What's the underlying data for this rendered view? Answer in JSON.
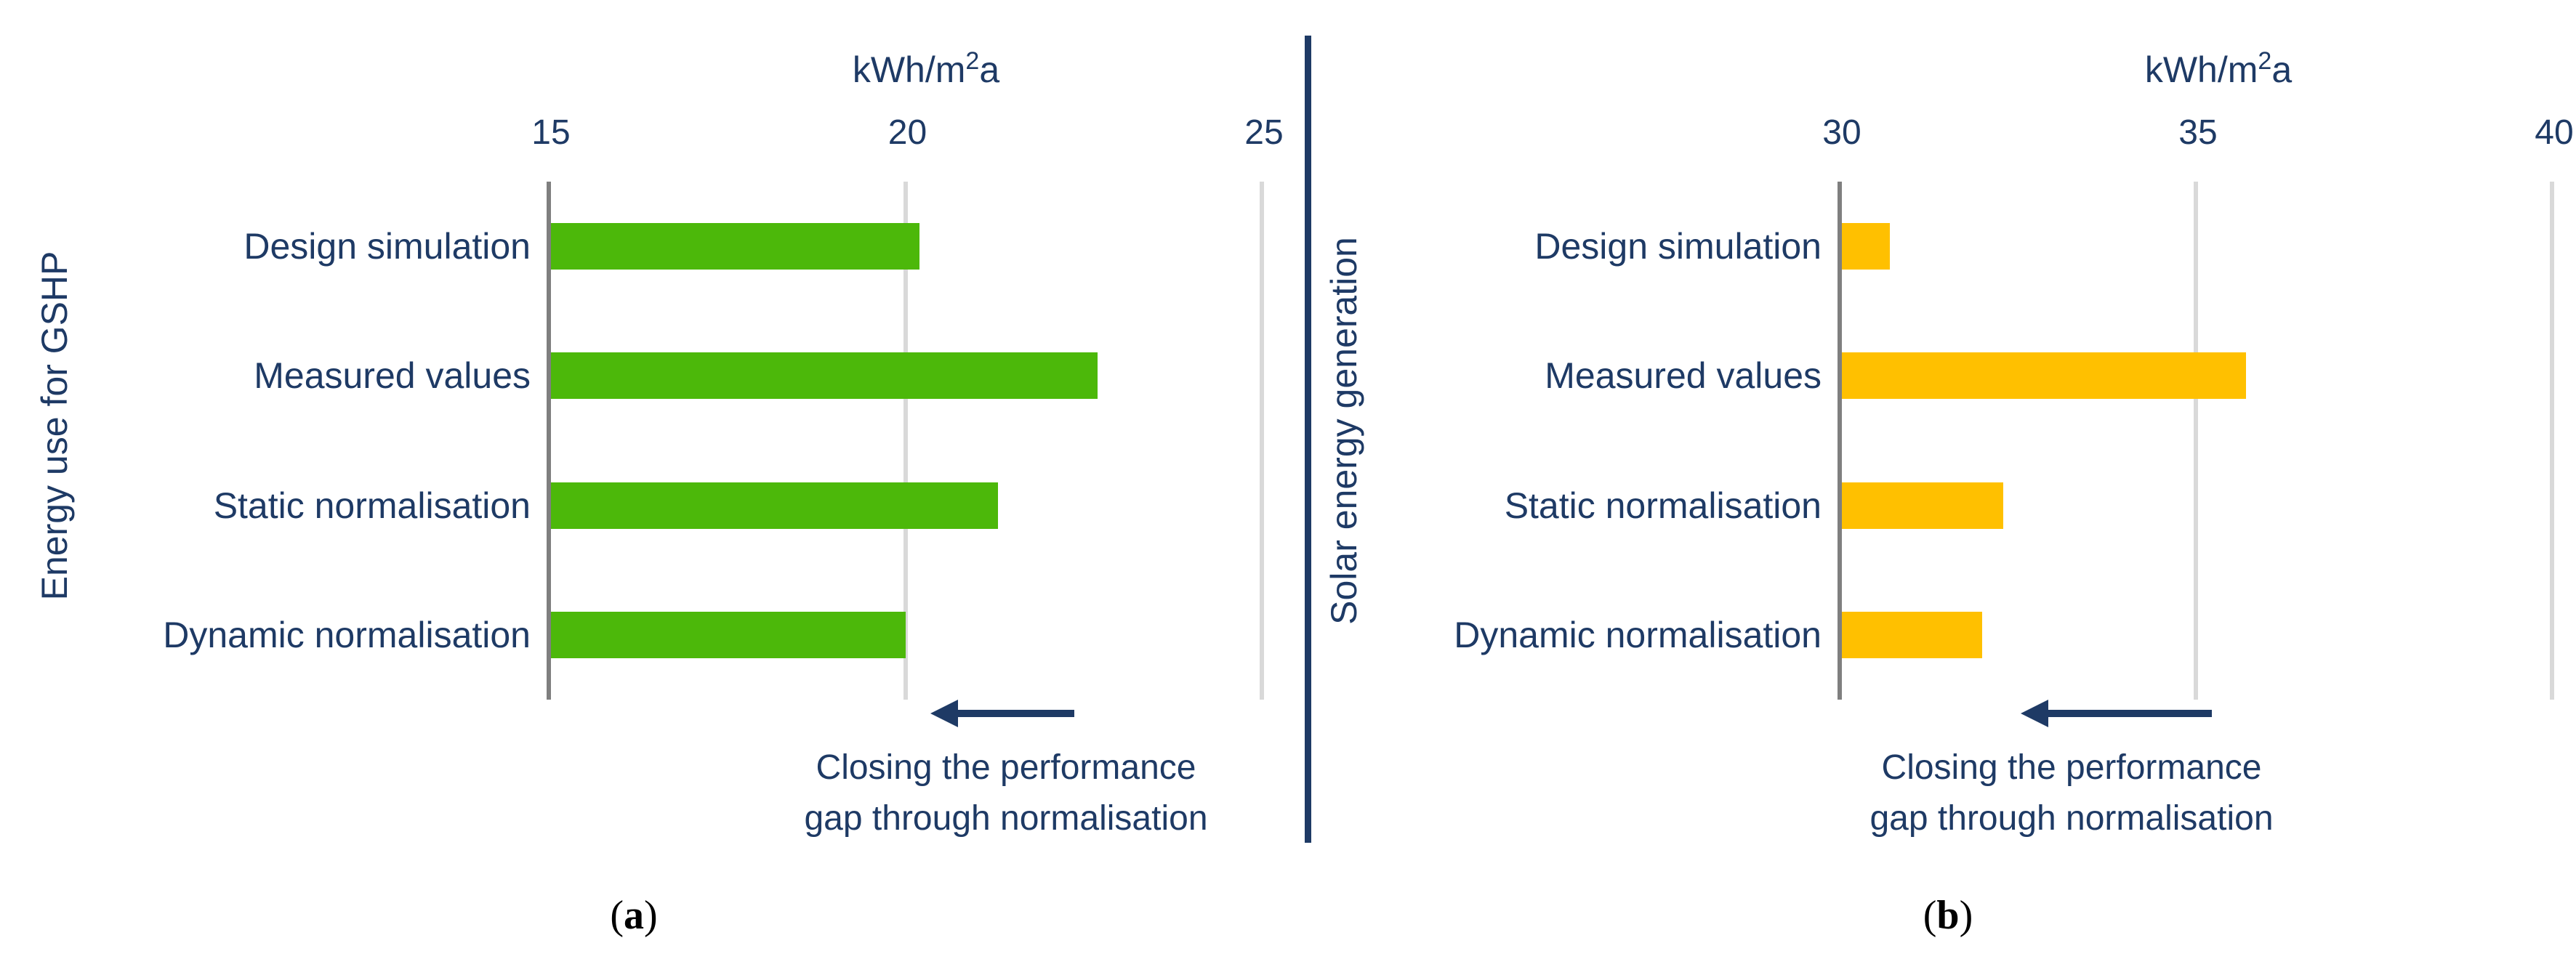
{
  "figure_title": "Performance gap normalisation bar charts",
  "colors": {
    "text_navy": "#1E3A65",
    "divider_navy": "#1E3A65",
    "arrow_navy": "#1E3A65",
    "axis_gray": "#7F7F7F",
    "gridline_gray": "#D9D9D9",
    "green_bar": "#4CB80A",
    "yellow_bar": "#FFC000",
    "caption_black": "#000000"
  },
  "chart_data": [
    {
      "type": "bar",
      "orientation": "horizontal",
      "title": "",
      "ylabel": "Energy use for GSHP",
      "xlabel": "kWh/m²a",
      "x_unit": {
        "base": "kWh/m",
        "sup": "2",
        "tail": "a"
      },
      "categories": [
        "Design simulation",
        "Measured values",
        "Static normalisation",
        "Dynamic normalisation"
      ],
      "values": [
        20.2,
        22.7,
        21.3,
        20.0
      ],
      "xlim": [
        15,
        25
      ],
      "xticks": [
        "15",
        "20",
        "25"
      ],
      "grid": true,
      "legend": "none",
      "bar_color": "#4CB80A",
      "annotation_lines": [
        "Closing the performance",
        "gap through normalisation"
      ],
      "caption": {
        "open": "(",
        "letter": "a",
        "close": ")"
      }
    },
    {
      "type": "bar",
      "orientation": "horizontal",
      "title": "",
      "ylabel": "Solar energy generation",
      "xlabel": "kWh/m²a",
      "x_unit": {
        "base": "kWh/m",
        "sup": "2",
        "tail": "a"
      },
      "categories": [
        "Design simulation",
        "Measured values",
        "Static normalisation",
        "Dynamic normalisation"
      ],
      "values": [
        30.7,
        35.7,
        32.3,
        32.0
      ],
      "xlim": [
        30,
        40
      ],
      "xticks": [
        "30",
        "35",
        "40"
      ],
      "grid": true,
      "legend": "none",
      "bar_color": "#FFC000",
      "annotation_lines": [
        "Closing the performance",
        "gap through normalisation"
      ],
      "caption": {
        "open": "(",
        "letter": "b",
        "close": ")"
      }
    }
  ]
}
